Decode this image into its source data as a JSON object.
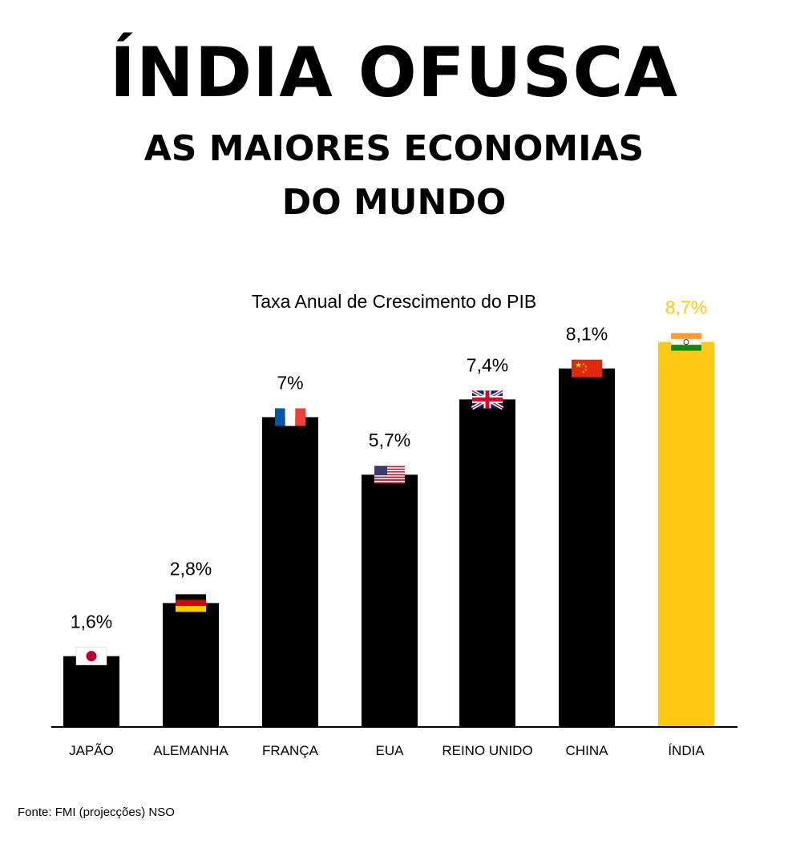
{
  "headline": {
    "main": "ÍNDIA OFUSCA",
    "line1": "AS MAIORES ECONOMIAS",
    "line2": "DO MUNDO"
  },
  "source": "Fonte: FMI (projecções) NSO",
  "colors": {
    "bar": "#000000",
    "highlight": "#FFC914",
    "background": "#FFFFFF"
  },
  "chart_data": {
    "type": "bar",
    "title": "Taxa Anual de Crescimento do PIB",
    "xlabel": "",
    "ylabel": "",
    "ylim": [
      0,
      9
    ],
    "grid": false,
    "categories": [
      "JAPÃO",
      "ALEMANHA",
      "FRANÇA",
      "EUA",
      "REINO UNIDO",
      "CHINA",
      "ÍNDIA"
    ],
    "values": [
      1.6,
      2.8,
      7,
      5.7,
      7.4,
      8.1,
      8.7
    ],
    "value_labels": [
      "1,6%",
      "2,8%",
      "7%",
      "5,7%",
      "7,4%",
      "8,1%",
      "8,7%"
    ],
    "flags": [
      "japan-flag",
      "germany-flag",
      "france-flag",
      "usa-flag",
      "uk-flag",
      "china-flag",
      "india-flag"
    ],
    "highlight_index": 6
  }
}
